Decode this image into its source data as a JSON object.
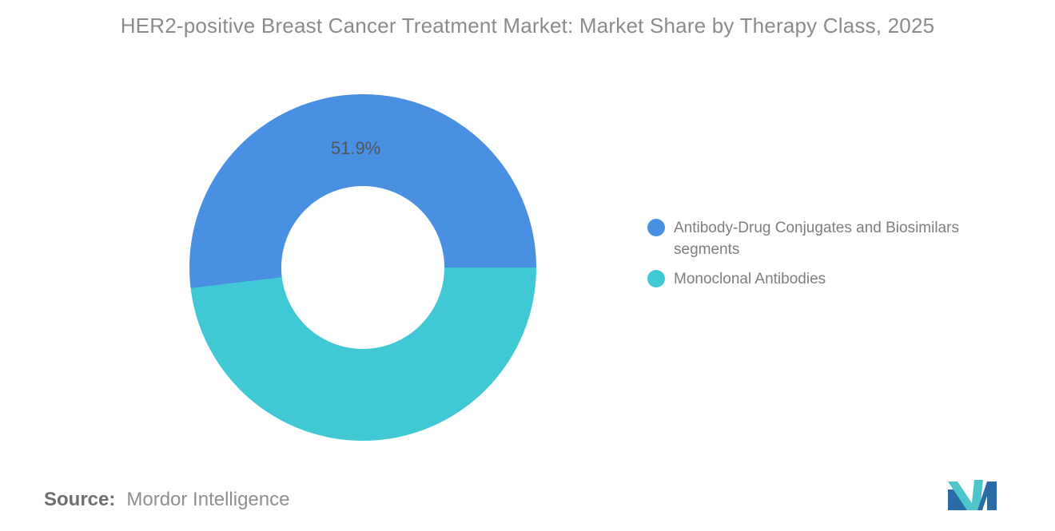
{
  "title": "HER2-positive Breast Cancer Treatment Market: Market Share by Therapy Class, 2025",
  "chart_data": {
    "type": "pie",
    "subtype": "donut",
    "categories": [
      "Antibody-Drug Conjugates and Biosimilars segments",
      "Monoclonal Antibodies"
    ],
    "values": [
      51.9,
      48.1
    ],
    "colors": [
      "#4A90E2",
      "#40C9D5"
    ],
    "data_label": {
      "text": "51.9%",
      "slice": 0
    },
    "inner_radius_ratio": 0.47,
    "start_angle": "right (3 o'clock), first slice sweeps counterclockwise over the top",
    "legend_position": "right",
    "title": "HER2-positive Breast Cancer Treatment Market: Market Share by Therapy Class, 2025"
  },
  "source": {
    "label": "Source:",
    "value": "Mordor Intelligence"
  },
  "logo": {
    "name": "mordor-intelligence-monogram",
    "teal": "#4EC5CB",
    "blue": "#2A6CA6"
  },
  "colors": {
    "background": "#FFFFFF",
    "title_text": "#8B8B8B",
    "legend_text": "#7E7E7E",
    "data_label_text": "#50555A"
  }
}
